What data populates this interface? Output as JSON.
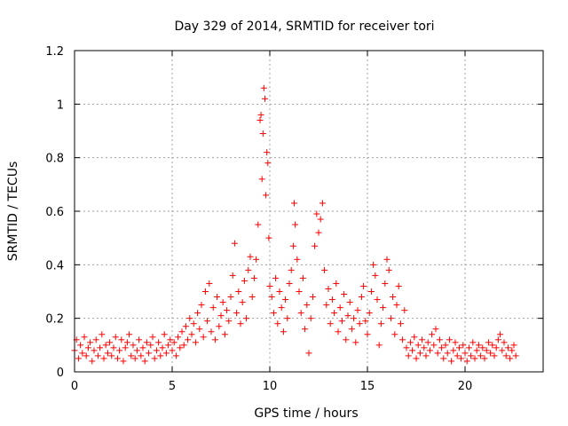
{
  "chart_data": {
    "type": "scatter",
    "title": "Day 329 of 2014, SRMTID for receiver tori",
    "xlabel": "GPS time / hours",
    "ylabel": "SRMTID / TECUs",
    "xlim": [
      0,
      24
    ],
    "ylim": [
      0,
      1.2
    ],
    "xticks": [
      0,
      5,
      10,
      15,
      20
    ],
    "xtick_labels": [
      "0",
      "5",
      "10",
      "15",
      "20"
    ],
    "yticks": [
      0,
      0.2,
      0.4,
      0.6,
      0.8,
      1.0,
      1.2
    ],
    "ytick_labels": [
      "0",
      "0.2",
      "0.4",
      "0.6",
      "0.8",
      "1",
      "1.2"
    ],
    "grid": true,
    "marker": "+",
    "color": "#ff0000",
    "series": [
      {
        "name": "SRMTID",
        "points": [
          [
            0.0,
            0.08
          ],
          [
            0.1,
            0.12
          ],
          [
            0.2,
            0.05
          ],
          [
            0.3,
            0.1
          ],
          [
            0.4,
            0.07
          ],
          [
            0.5,
            0.13
          ],
          [
            0.6,
            0.06
          ],
          [
            0.7,
            0.09
          ],
          [
            0.8,
            0.11
          ],
          [
            0.9,
            0.04
          ],
          [
            1.0,
            0.08
          ],
          [
            1.1,
            0.12
          ],
          [
            1.2,
            0.06
          ],
          [
            1.3,
            0.09
          ],
          [
            1.4,
            0.14
          ],
          [
            1.5,
            0.05
          ],
          [
            1.6,
            0.1
          ],
          [
            1.7,
            0.07
          ],
          [
            1.8,
            0.11
          ],
          [
            1.9,
            0.06
          ],
          [
            2.0,
            0.09
          ],
          [
            2.1,
            0.13
          ],
          [
            2.2,
            0.05
          ],
          [
            2.3,
            0.08
          ],
          [
            2.4,
            0.12
          ],
          [
            2.5,
            0.04
          ],
          [
            2.6,
            0.09
          ],
          [
            2.7,
            0.11
          ],
          [
            2.8,
            0.14
          ],
          [
            2.9,
            0.06
          ],
          [
            3.0,
            0.1
          ],
          [
            3.1,
            0.05
          ],
          [
            3.2,
            0.08
          ],
          [
            3.3,
            0.12
          ],
          [
            3.4,
            0.06
          ],
          [
            3.5,
            0.09
          ],
          [
            3.6,
            0.04
          ],
          [
            3.7,
            0.11
          ],
          [
            3.8,
            0.07
          ],
          [
            3.9,
            0.1
          ],
          [
            4.0,
            0.13
          ],
          [
            4.1,
            0.05
          ],
          [
            4.2,
            0.08
          ],
          [
            4.3,
            0.11
          ],
          [
            4.4,
            0.06
          ],
          [
            4.5,
            0.09
          ],
          [
            4.6,
            0.14
          ],
          [
            4.7,
            0.07
          ],
          [
            4.8,
            0.1
          ],
          [
            4.9,
            0.12
          ],
          [
            5.0,
            0.08
          ],
          [
            5.1,
            0.11
          ],
          [
            5.2,
            0.06
          ],
          [
            5.3,
            0.13
          ],
          [
            5.4,
            0.09
          ],
          [
            5.5,
            0.15
          ],
          [
            5.6,
            0.1
          ],
          [
            5.7,
            0.17
          ],
          [
            5.8,
            0.12
          ],
          [
            5.9,
            0.2
          ],
          [
            6.0,
            0.14
          ],
          [
            6.1,
            0.18
          ],
          [
            6.2,
            0.11
          ],
          [
            6.3,
            0.22
          ],
          [
            6.4,
            0.16
          ],
          [
            6.5,
            0.25
          ],
          [
            6.6,
            0.13
          ],
          [
            6.7,
            0.3
          ],
          [
            6.8,
            0.19
          ],
          [
            6.9,
            0.33
          ],
          [
            7.0,
            0.15
          ],
          [
            7.1,
            0.24
          ],
          [
            7.2,
            0.12
          ],
          [
            7.3,
            0.28
          ],
          [
            7.4,
            0.17
          ],
          [
            7.5,
            0.21
          ],
          [
            7.6,
            0.26
          ],
          [
            7.7,
            0.14
          ],
          [
            7.8,
            0.23
          ],
          [
            7.9,
            0.19
          ],
          [
            8.0,
            0.28
          ],
          [
            8.1,
            0.36
          ],
          [
            8.2,
            0.48
          ],
          [
            8.3,
            0.22
          ],
          [
            8.4,
            0.3
          ],
          [
            8.5,
            0.18
          ],
          [
            8.6,
            0.26
          ],
          [
            8.7,
            0.34
          ],
          [
            8.8,
            0.2
          ],
          [
            8.9,
            0.38
          ],
          [
            9.0,
            0.43
          ],
          [
            9.1,
            0.28
          ],
          [
            9.2,
            0.35
          ],
          [
            9.3,
            0.42
          ],
          [
            9.4,
            0.55
          ],
          [
            9.5,
            0.94
          ],
          [
            9.55,
            0.96
          ],
          [
            9.6,
            0.72
          ],
          [
            9.65,
            0.89
          ],
          [
            9.7,
            1.06
          ],
          [
            9.75,
            1.02
          ],
          [
            9.8,
            0.66
          ],
          [
            9.85,
            0.82
          ],
          [
            9.9,
            0.78
          ],
          [
            9.95,
            0.5
          ],
          [
            10.0,
            0.32
          ],
          [
            10.1,
            0.28
          ],
          [
            10.2,
            0.22
          ],
          [
            10.3,
            0.35
          ],
          [
            10.4,
            0.18
          ],
          [
            10.5,
            0.3
          ],
          [
            10.6,
            0.24
          ],
          [
            10.7,
            0.15
          ],
          [
            10.8,
            0.27
          ],
          [
            10.9,
            0.2
          ],
          [
            11.0,
            0.33
          ],
          [
            11.1,
            0.38
          ],
          [
            11.2,
            0.47
          ],
          [
            11.25,
            0.63
          ],
          [
            11.3,
            0.55
          ],
          [
            11.4,
            0.42
          ],
          [
            11.5,
            0.3
          ],
          [
            11.6,
            0.22
          ],
          [
            11.7,
            0.35
          ],
          [
            11.8,
            0.16
          ],
          [
            11.9,
            0.25
          ],
          [
            12.0,
            0.07
          ],
          [
            12.1,
            0.2
          ],
          [
            12.2,
            0.28
          ],
          [
            12.3,
            0.47
          ],
          [
            12.4,
            0.59
          ],
          [
            12.5,
            0.52
          ],
          [
            12.6,
            0.57
          ],
          [
            12.7,
            0.63
          ],
          [
            12.8,
            0.38
          ],
          [
            12.9,
            0.25
          ],
          [
            13.0,
            0.31
          ],
          [
            13.1,
            0.18
          ],
          [
            13.2,
            0.27
          ],
          [
            13.3,
            0.22
          ],
          [
            13.4,
            0.33
          ],
          [
            13.5,
            0.15
          ],
          [
            13.6,
            0.24
          ],
          [
            13.7,
            0.19
          ],
          [
            13.8,
            0.29
          ],
          [
            13.9,
            0.12
          ],
          [
            14.0,
            0.21
          ],
          [
            14.1,
            0.26
          ],
          [
            14.2,
            0.16
          ],
          [
            14.3,
            0.2
          ],
          [
            14.4,
            0.11
          ],
          [
            14.5,
            0.23
          ],
          [
            14.6,
            0.18
          ],
          [
            14.7,
            0.28
          ],
          [
            14.8,
            0.32
          ],
          [
            14.9,
            0.19
          ],
          [
            15.0,
            0.14
          ],
          [
            15.1,
            0.22
          ],
          [
            15.2,
            0.3
          ],
          [
            15.3,
            0.4
          ],
          [
            15.4,
            0.36
          ],
          [
            15.5,
            0.27
          ],
          [
            15.6,
            0.1
          ],
          [
            15.7,
            0.18
          ],
          [
            15.8,
            0.24
          ],
          [
            15.9,
            0.33
          ],
          [
            16.0,
            0.42
          ],
          [
            16.1,
            0.38
          ],
          [
            16.2,
            0.2
          ],
          [
            16.3,
            0.28
          ],
          [
            16.4,
            0.14
          ],
          [
            16.5,
            0.25
          ],
          [
            16.6,
            0.32
          ],
          [
            16.7,
            0.18
          ],
          [
            16.8,
            0.12
          ],
          [
            16.9,
            0.23
          ],
          [
            17.0,
            0.09
          ],
          [
            17.1,
            0.06
          ],
          [
            17.2,
            0.11
          ],
          [
            17.3,
            0.08
          ],
          [
            17.4,
            0.13
          ],
          [
            17.5,
            0.05
          ],
          [
            17.6,
            0.1
          ],
          [
            17.7,
            0.07
          ],
          [
            17.8,
            0.12
          ],
          [
            17.9,
            0.09
          ],
          [
            18.0,
            0.06
          ],
          [
            18.1,
            0.11
          ],
          [
            18.2,
            0.08
          ],
          [
            18.3,
            0.14
          ],
          [
            18.4,
            0.1
          ],
          [
            18.5,
            0.16
          ],
          [
            18.6,
            0.07
          ],
          [
            18.7,
            0.12
          ],
          [
            18.8,
            0.09
          ],
          [
            18.9,
            0.05
          ],
          [
            19.0,
            0.1
          ],
          [
            19.1,
            0.07
          ],
          [
            19.2,
            0.12
          ],
          [
            19.3,
            0.04
          ],
          [
            19.4,
            0.08
          ],
          [
            19.5,
            0.11
          ],
          [
            19.6,
            0.06
          ],
          [
            19.7,
            0.09
          ],
          [
            19.8,
            0.05
          ],
          [
            19.9,
            0.1
          ],
          [
            20.0,
            0.07
          ],
          [
            20.1,
            0.04
          ],
          [
            20.2,
            0.09
          ],
          [
            20.3,
            0.06
          ],
          [
            20.4,
            0.11
          ],
          [
            20.5,
            0.05
          ],
          [
            20.6,
            0.08
          ],
          [
            20.7,
            0.1
          ],
          [
            20.8,
            0.06
          ],
          [
            20.9,
            0.09
          ],
          [
            21.0,
            0.05
          ],
          [
            21.1,
            0.08
          ],
          [
            21.2,
            0.11
          ],
          [
            21.3,
            0.07
          ],
          [
            21.4,
            0.1
          ],
          [
            21.5,
            0.06
          ],
          [
            21.6,
            0.09
          ],
          [
            21.7,
            0.12
          ],
          [
            21.8,
            0.14
          ],
          [
            21.9,
            0.08
          ],
          [
            22.0,
            0.11
          ],
          [
            22.1,
            0.06
          ],
          [
            22.2,
            0.09
          ],
          [
            22.3,
            0.05
          ],
          [
            22.4,
            0.08
          ],
          [
            22.5,
            0.1
          ],
          [
            22.6,
            0.06
          ]
        ]
      }
    ]
  }
}
